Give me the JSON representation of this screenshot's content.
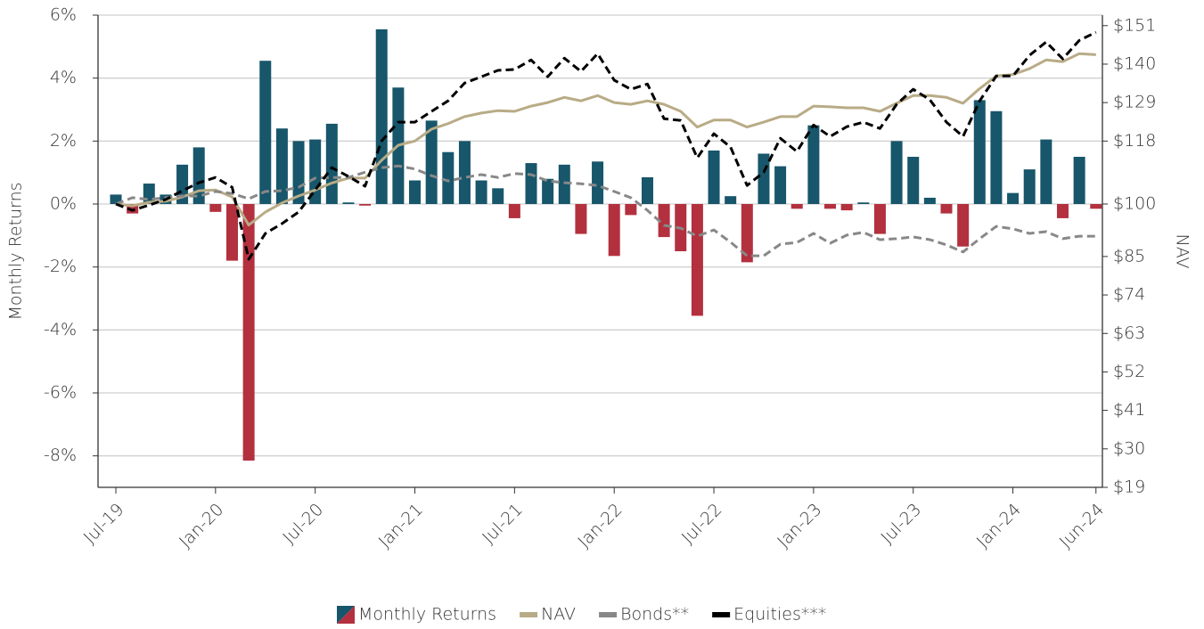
{
  "chart_data": {
    "type": "bar",
    "y_axis_label": "Monthly Returns",
    "y2_axis_label": "NAV",
    "categories": [
      "Jul-19",
      null,
      null,
      null,
      null,
      null,
      "Jan-20",
      null,
      null,
      null,
      null,
      null,
      "Jul-20",
      null,
      null,
      null,
      null,
      null,
      "Jan-21",
      null,
      null,
      null,
      null,
      null,
      "Jul-21",
      null,
      null,
      null,
      null,
      null,
      "Jan-22",
      null,
      null,
      null,
      null,
      null,
      "Jul-22",
      null,
      null,
      null,
      null,
      null,
      "Jan-23",
      null,
      null,
      null,
      null,
      null,
      "Jul-23",
      null,
      null,
      null,
      null,
      null,
      "Jan-24",
      null,
      null,
      null,
      null,
      "Jun-24"
    ],
    "ylim": [
      -9,
      6
    ],
    "yticks": [
      {
        "value": 6,
        "label": "6%"
      },
      {
        "value": 4,
        "label": "4%"
      },
      {
        "value": 2,
        "label": "2%"
      },
      {
        "value": 0,
        "label": "0%"
      },
      {
        "value": -2,
        "label": "-2%"
      },
      {
        "value": -4,
        "label": "-4%"
      },
      {
        "value": -6,
        "label": "-6%"
      },
      {
        "value": -8,
        "label": "-8%"
      }
    ],
    "y2lim": [
      19,
      154
    ],
    "y2ticks": [
      {
        "value": 151,
        "label": "$151"
      },
      {
        "value": 140,
        "label": "$140"
      },
      {
        "value": 129,
        "label": "$129"
      },
      {
        "value": 118,
        "label": "$118"
      },
      {
        "value": 100,
        "label": "$100"
      },
      {
        "value": 85,
        "label": "$85"
      },
      {
        "value": 74,
        "label": "$74"
      },
      {
        "value": 63,
        "label": "$63"
      },
      {
        "value": 52,
        "label": "$52"
      },
      {
        "value": 41,
        "label": "$41"
      },
      {
        "value": 30,
        "label": "$30"
      },
      {
        "value": 19,
        "label": "$19"
      }
    ],
    "grid": true,
    "legend": "bottom",
    "series": [
      {
        "name": "Monthly Returns",
        "type": "bar",
        "color": "#17566b",
        "negative_color": "#b3303e",
        "values": [
          0.3,
          -0.3,
          0.65,
          0.3,
          1.25,
          1.8,
          -0.25,
          -1.8,
          -8.15,
          4.55,
          2.4,
          2.0,
          2.05,
          2.55,
          0.05,
          -0.05,
          5.55,
          3.7,
          0.75,
          2.65,
          1.65,
          2.0,
          0.75,
          0.5,
          -0.45,
          1.3,
          0.8,
          1.25,
          -0.95,
          1.35,
          -1.65,
          -0.35,
          0.85,
          -1.05,
          -1.5,
          -3.55,
          1.7,
          0.25,
          -1.85,
          1.6,
          1.2,
          -0.15,
          2.5,
          -0.15,
          -0.2,
          0.05,
          -0.95,
          2.0,
          1.5,
          0.2,
          -0.3,
          -1.35,
          3.3,
          2.95,
          0.35,
          1.1,
          2.05,
          -0.45,
          1.5,
          -0.15
        ]
      },
      {
        "name": "NAV",
        "type": "line",
        "axis": "y2",
        "color": "#b8ab86",
        "dashed": false,
        "values": [
          100,
          99.5,
          100.5,
          100.8,
          102,
          103.8,
          104,
          102,
          94,
          97.7,
          100.3,
          102.3,
          104,
          106,
          107.4,
          107.4,
          112.5,
          116.8,
          118,
          121.4,
          123,
          125,
          126,
          126.7,
          126.5,
          128,
          129,
          130.5,
          129.5,
          131,
          129,
          128.5,
          129.5,
          128.5,
          126.5,
          122,
          124,
          124,
          122,
          123.4,
          125,
          125,
          128,
          127.8,
          127.5,
          127.5,
          126.5,
          128.8,
          131,
          131,
          130.5,
          128.8,
          133,
          136.6,
          137,
          138.7,
          141.2,
          140.7,
          143,
          142.7
        ]
      },
      {
        "name": "Bonds**",
        "type": "line",
        "axis": "y2",
        "color": "#888888",
        "dashed": true,
        "values": [
          100,
          101.8,
          101.3,
          101.8,
          102.3,
          102.3,
          103.6,
          103,
          101.5,
          103.6,
          103.8,
          104.8,
          107.4,
          107.6,
          107.6,
          109.1,
          110.4,
          110.9,
          110,
          108.1,
          106.6,
          107.6,
          108.4,
          107.6,
          108.7,
          108.4,
          106.6,
          106.1,
          105.8,
          105.3,
          103.6,
          101.8,
          98.2,
          93.9,
          93.1,
          90.8,
          92.6,
          89.1,
          85.2,
          85.2,
          88.5,
          89,
          91.6,
          88.8,
          91.1,
          91.9,
          89.8,
          90.1,
          90.6,
          89.8,
          88.3,
          86.3,
          90.1,
          93.6,
          92.9,
          91.6,
          92.1,
          90.1,
          90.8,
          90.8
        ]
      },
      {
        "name": "Equities***",
        "type": "line",
        "axis": "y2",
        "color": "#000000",
        "dashed": true,
        "values": [
          100,
          98.2,
          99.7,
          101.3,
          103.8,
          106.1,
          107.6,
          104.8,
          84.2,
          91.6,
          94.4,
          97.7,
          104,
          110.4,
          107.9,
          105.1,
          118,
          123.4,
          123.4,
          126.5,
          129.5,
          134.6,
          136.4,
          138.2,
          138.5,
          141.2,
          136.4,
          141.7,
          137.9,
          143,
          135.4,
          132.8,
          134.3,
          124.4,
          123.9,
          113.2,
          120.1,
          116.3,
          105.3,
          109.1,
          118.8,
          115,
          122.6,
          119.3,
          122.1,
          123.4,
          121.6,
          128.5,
          132.8,
          129.8,
          123.4,
          119.3,
          129.5,
          136.6,
          136.6,
          142.5,
          146.3,
          141.5,
          146.8,
          149.1
        ]
      }
    ]
  }
}
